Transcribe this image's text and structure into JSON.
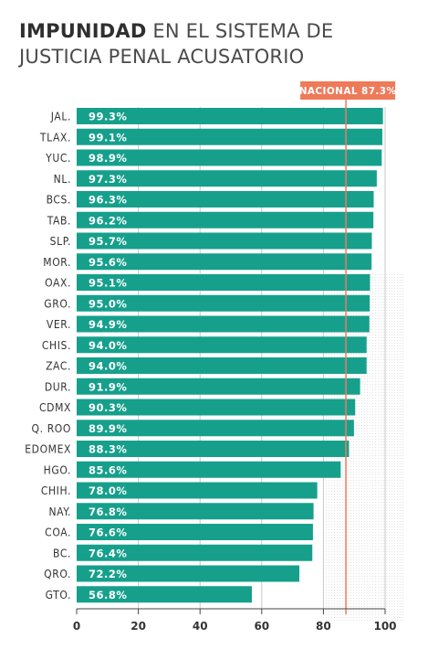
{
  "header": {
    "title_bold": "IMPUNIDAD",
    "title_line1_rest": " EN EL SISTEMA DE",
    "title_line2": "JUSTICIA PENAL ACUSATORIO"
  },
  "colors": {
    "bar": "#16a08c",
    "reference_line": "#ee7a5a",
    "reference_label_bg": "#ee7a5a",
    "grid": "#c8c8c8",
    "text": "#333333"
  },
  "chart_data": {
    "type": "bar",
    "orientation": "horizontal",
    "categories": [
      "JAL.",
      "TLAX.",
      "YUC.",
      "NL.",
      "BCS.",
      "TAB.",
      "SLP.",
      "MOR.",
      "OAX.",
      "GRO.",
      "VER.",
      "CHIS.",
      "ZAC.",
      "DUR.",
      "CDMX",
      "Q. ROO",
      "EDOMEX",
      "HGO.",
      "CHIH.",
      "NAY.",
      "COA.",
      "BC.",
      "QRO.",
      "GTO."
    ],
    "values": [
      99.3,
      99.1,
      98.9,
      97.3,
      96.3,
      96.2,
      95.7,
      95.6,
      95.1,
      95.0,
      94.9,
      94.0,
      94.0,
      91.9,
      90.3,
      89.9,
      88.3,
      85.6,
      78.0,
      76.8,
      76.6,
      76.4,
      72.2,
      56.8
    ],
    "value_labels": [
      "99.3%",
      "99.1%",
      "98.9%",
      "97.3%",
      "96.3%",
      "96.2%",
      "95.7%",
      "95.6%",
      "95.1%",
      "95.0%",
      "94.9%",
      "94.0%",
      "94.0%",
      "91.9%",
      "90.3%",
      "89.9%",
      "88.3%",
      "85.6%",
      "78.0%",
      "76.8%",
      "76.6%",
      "76.4%",
      "72.2%",
      "56.8%"
    ],
    "xlim": [
      0,
      100
    ],
    "xticks": [
      0,
      20,
      40,
      60,
      80,
      100
    ],
    "reference": {
      "value": 87.3,
      "label": "NACIONAL 87.3%"
    },
    "grid": true
  }
}
